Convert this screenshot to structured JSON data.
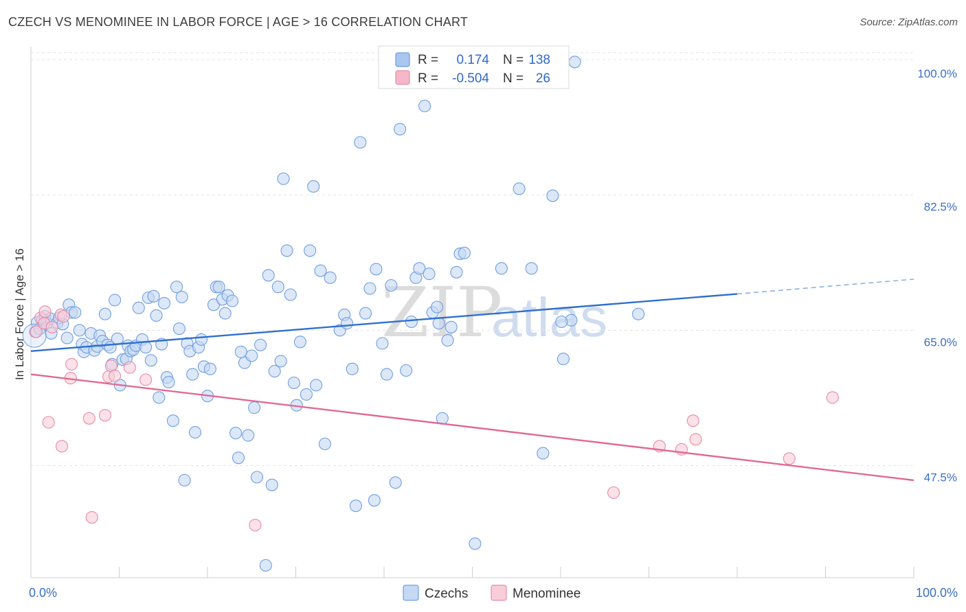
{
  "header": {
    "title": "CZECH VS MENOMINEE IN LABOR FORCE | AGE > 16 CORRELATION CHART",
    "source": "Source: ZipAtlas.com"
  },
  "watermark": {
    "zip": "ZIP",
    "atlas": "atlas"
  },
  "legend": {
    "rows": [
      {
        "r_label": "R =",
        "r_value": "0.174",
        "n_label": "N =",
        "n_value": "138",
        "color": "#a9c6ee"
      },
      {
        "r_label": "R =",
        "r_value": "-0.504",
        "n_label": "N =",
        "n_value": "26",
        "color": "#f4b8c8"
      }
    ]
  },
  "bottom_legend": {
    "czechs": "Czechs",
    "menominee": "Menominee"
  },
  "chart_data": {
    "type": "scatter",
    "title": "CZECH VS MENOMINEE IN LABOR FORCE | AGE > 16 CORRELATION CHART",
    "xlabel": "",
    "ylabel": "In Labor Force | Age > 16",
    "xlim": [
      0,
      100
    ],
    "ylim": [
      33,
      101.5
    ],
    "x_tick_labels": [
      "0.0%",
      "100.0%"
    ],
    "y_ticks": [
      47.5,
      65.0,
      82.5,
      100.0
    ],
    "y_tick_labels": [
      "47.5%",
      "65.0%",
      "82.5%",
      "100.0%"
    ],
    "grid": "horizontal dashed",
    "legend_position": "top-center",
    "series": [
      {
        "name": "Czechs",
        "color": "#6f9de0",
        "fill": "#c5d8f4",
        "trend": {
          "x0": 0,
          "y0": 62.3,
          "x1": 80,
          "y1": 69.7,
          "x_dash_end": 100,
          "y_dash_end": 71.6
        },
        "points": [
          [
            0.5,
            64.8
          ],
          [
            0.7,
            66.0
          ],
          [
            1.0,
            65.2
          ],
          [
            1.3,
            66.4
          ],
          [
            1.6,
            66.8
          ],
          [
            1.8,
            65.9
          ],
          [
            2.2,
            66.5
          ],
          [
            2.3,
            64.6
          ],
          [
            3.0,
            66.0
          ],
          [
            3.2,
            66.6
          ],
          [
            3.6,
            65.8
          ],
          [
            4.1,
            64.0
          ],
          [
            4.3,
            68.3
          ],
          [
            4.6,
            67.3
          ],
          [
            5.0,
            67.3
          ],
          [
            5.5,
            65.0
          ],
          [
            5.8,
            63.2
          ],
          [
            6.0,
            62.2
          ],
          [
            6.3,
            62.8
          ],
          [
            6.8,
            64.6
          ],
          [
            7.2,
            62.4
          ],
          [
            7.5,
            62.9
          ],
          [
            7.8,
            64.3
          ],
          [
            8.1,
            63.6
          ],
          [
            8.4,
            67.1
          ],
          [
            8.7,
            63.1
          ],
          [
            9.0,
            62.8
          ],
          [
            9.2,
            60.6
          ],
          [
            9.5,
            68.9
          ],
          [
            9.8,
            63.9
          ],
          [
            10.1,
            57.9
          ],
          [
            10.4,
            61.2
          ],
          [
            10.8,
            61.3
          ],
          [
            11.0,
            63.0
          ],
          [
            11.3,
            62.3
          ],
          [
            11.6,
            62.5
          ],
          [
            11.9,
            63.0
          ],
          [
            12.2,
            67.9
          ],
          [
            12.6,
            63.8
          ],
          [
            13.0,
            62.8
          ],
          [
            13.3,
            69.2
          ],
          [
            13.6,
            61.1
          ],
          [
            13.9,
            69.4
          ],
          [
            14.2,
            66.9
          ],
          [
            14.5,
            56.3
          ],
          [
            14.8,
            63.2
          ],
          [
            15.1,
            68.5
          ],
          [
            15.4,
            58.9
          ],
          [
            15.6,
            58.3
          ],
          [
            16.1,
            53.3
          ],
          [
            16.5,
            70.6
          ],
          [
            16.8,
            65.2
          ],
          [
            17.1,
            69.3
          ],
          [
            17.4,
            45.6
          ],
          [
            17.7,
            63.3
          ],
          [
            18.0,
            62.3
          ],
          [
            18.3,
            59.3
          ],
          [
            18.6,
            51.8
          ],
          [
            19.0,
            62.8
          ],
          [
            19.3,
            63.8
          ],
          [
            19.6,
            60.3
          ],
          [
            20.0,
            56.5
          ],
          [
            20.3,
            60.0
          ],
          [
            20.7,
            68.3
          ],
          [
            21.0,
            70.6
          ],
          [
            21.3,
            70.6
          ],
          [
            21.7,
            69.0
          ],
          [
            22.0,
            67.2
          ],
          [
            22.3,
            69.5
          ],
          [
            22.8,
            68.8
          ],
          [
            23.2,
            51.7
          ],
          [
            23.5,
            48.5
          ],
          [
            23.8,
            62.2
          ],
          [
            24.2,
            60.8
          ],
          [
            24.6,
            51.4
          ],
          [
            25.0,
            61.7
          ],
          [
            25.3,
            55.0
          ],
          [
            25.6,
            46.0
          ],
          [
            26.0,
            63.1
          ],
          [
            26.6,
            34.6
          ],
          [
            26.9,
            72.1
          ],
          [
            27.3,
            45.0
          ],
          [
            27.6,
            59.7
          ],
          [
            28.0,
            70.6
          ],
          [
            28.3,
            61.0
          ],
          [
            28.6,
            84.6
          ],
          [
            29.0,
            75.3
          ],
          [
            29.4,
            69.6
          ],
          [
            29.8,
            58.2
          ],
          [
            30.1,
            55.3
          ],
          [
            30.5,
            63.5
          ],
          [
            31.2,
            56.7
          ],
          [
            31.6,
            75.3
          ],
          [
            32.0,
            83.6
          ],
          [
            32.3,
            57.9
          ],
          [
            32.8,
            72.7
          ],
          [
            33.3,
            50.3
          ],
          [
            33.9,
            71.8
          ],
          [
            35.0,
            65.0
          ],
          [
            35.5,
            67.0
          ],
          [
            35.8,
            65.9
          ],
          [
            36.4,
            60.0
          ],
          [
            36.8,
            42.3
          ],
          [
            37.3,
            89.3
          ],
          [
            37.9,
            67.2
          ],
          [
            38.4,
            70.4
          ],
          [
            38.9,
            43.0
          ],
          [
            39.1,
            72.9
          ],
          [
            39.8,
            63.3
          ],
          [
            40.3,
            59.3
          ],
          [
            40.8,
            70.8
          ],
          [
            41.3,
            45.3
          ],
          [
            41.8,
            91.0
          ],
          [
            42.5,
            59.8
          ],
          [
            43.1,
            66.1
          ],
          [
            43.6,
            71.8
          ],
          [
            44.0,
            73.0
          ],
          [
            44.6,
            94.0
          ],
          [
            45.1,
            72.3
          ],
          [
            45.5,
            67.3
          ],
          [
            46.0,
            68.0
          ],
          [
            46.2,
            65.9
          ],
          [
            46.6,
            53.6
          ],
          [
            47.2,
            63.7
          ],
          [
            47.6,
            65.4
          ],
          [
            48.2,
            72.5
          ],
          [
            48.6,
            74.9
          ],
          [
            49.1,
            75.0
          ],
          [
            50.3,
            37.4
          ],
          [
            53.3,
            73.0
          ],
          [
            55.3,
            83.3
          ],
          [
            56.7,
            73.0
          ],
          [
            58.0,
            49.1
          ],
          [
            59.1,
            82.4
          ],
          [
            60.3,
            61.3
          ],
          [
            61.2,
            66.3
          ],
          [
            68.8,
            67.1
          ],
          [
            61.6,
            99.7
          ],
          [
            60.1,
            66.1
          ]
        ]
      },
      {
        "name": "Menominee",
        "color": "#e68aa7",
        "fill": "#f8cdd9",
        "trend": {
          "x0": 0,
          "y0": 59.3,
          "x1": 100,
          "y1": 45.6
        },
        "points": [
          [
            0.6,
            64.8
          ],
          [
            1.1,
            66.6
          ],
          [
            1.5,
            65.9
          ],
          [
            1.6,
            67.4
          ],
          [
            2.0,
            53.1
          ],
          [
            2.4,
            65.4
          ],
          [
            3.4,
            67.0
          ],
          [
            3.5,
            50.0
          ],
          [
            3.7,
            66.8
          ],
          [
            4.5,
            58.8
          ],
          [
            4.6,
            60.6
          ],
          [
            6.6,
            53.6
          ],
          [
            6.9,
            40.8
          ],
          [
            8.4,
            54.0
          ],
          [
            8.8,
            59.0
          ],
          [
            9.1,
            60.4
          ],
          [
            9.5,
            59.1
          ],
          [
            11.2,
            60.2
          ],
          [
            13.0,
            58.6
          ],
          [
            25.4,
            39.8
          ],
          [
            66.0,
            44.0
          ],
          [
            71.2,
            50.0
          ],
          [
            73.7,
            49.6
          ],
          [
            75.0,
            53.3
          ],
          [
            75.3,
            50.9
          ],
          [
            85.9,
            48.4
          ],
          [
            90.8,
            56.3
          ]
        ]
      }
    ]
  }
}
